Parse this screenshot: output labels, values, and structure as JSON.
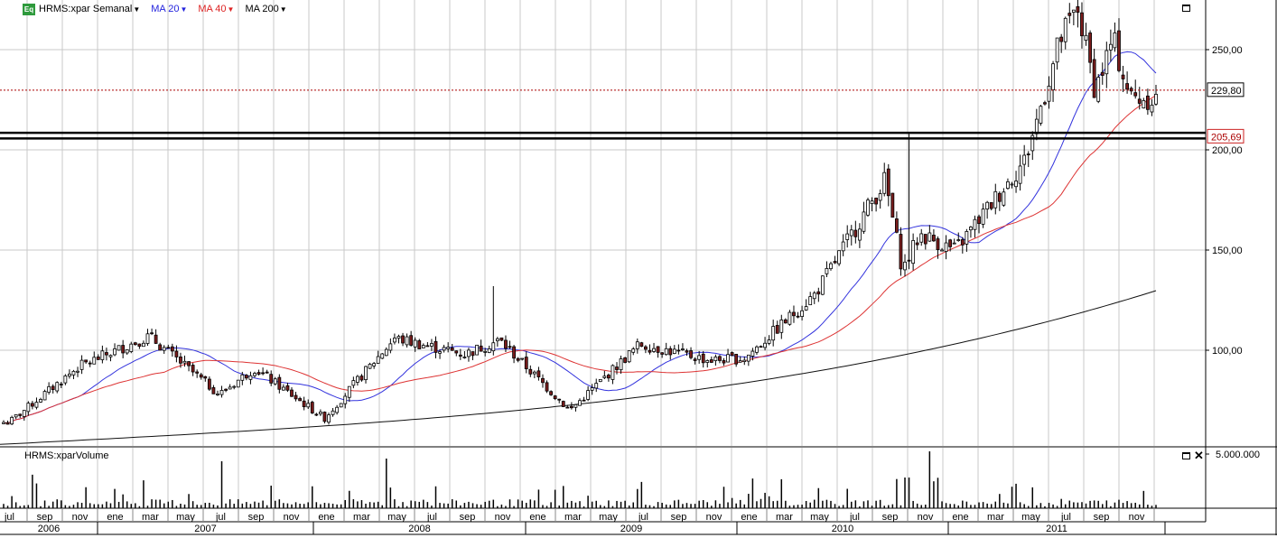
{
  "header": {
    "badge": "Eq",
    "symbol": "HRMS:xpar Semanal",
    "indicators": [
      {
        "label": "MA 20",
        "color": "#2222dd"
      },
      {
        "label": "MA 40",
        "color": "#dd2222"
      },
      {
        "label": "MA 200",
        "color": "#000000"
      }
    ]
  },
  "volume_panel": {
    "title": "HRMS:xparVolume",
    "tick_label": "5.000.000"
  },
  "price_markers": {
    "last": "229,80",
    "support": "205,69"
  },
  "icons": {
    "maximize": "maximize-icon",
    "close": "close-icon"
  },
  "colors": {
    "up": "#ffffff",
    "down": "#7a1c1c",
    "wick": "#000000",
    "ma20": "#3333dd",
    "ma40": "#dd3333",
    "ma200": "#111111",
    "grid": "#c8c8c8"
  },
  "chart_data": {
    "type": "candlestick",
    "y_axis": {
      "ticks": [
        100,
        150,
        200,
        250
      ],
      "tick_labels": [
        "100,00",
        "150,00",
        "200,00",
        "250,00"
      ],
      "range": [
        55,
        275
      ]
    },
    "reference_lines": [
      {
        "value": 229.8,
        "style": "dotted",
        "color": "#aa0000",
        "label": "229,80"
      },
      {
        "value": 208.5,
        "style": "solid-thick",
        "color": "#000000"
      },
      {
        "value": 205.69,
        "style": "solid-thick",
        "color": "#000000",
        "label": "205,69"
      }
    ],
    "x_axis": {
      "months": [
        "jul",
        "sep",
        "nov",
        "ene",
        "mar",
        "may",
        "jul",
        "sep",
        "nov",
        "ene",
        "mar",
        "may",
        "jul",
        "sep",
        "nov",
        "ene",
        "mar",
        "may",
        "jul",
        "sep",
        "nov",
        "ene",
        "mar",
        "may",
        "jul",
        "sep",
        "nov",
        "ene",
        "mar",
        "may",
        "jul",
        "sep",
        "nov"
      ],
      "years": [
        "2006",
        "2007",
        "2008",
        "2009",
        "2010",
        "2011"
      ]
    },
    "series": [
      {
        "name": "MA 20",
        "kind": "moving_average",
        "period": 20
      },
      {
        "name": "MA 40",
        "kind": "moving_average",
        "period": 40
      },
      {
        "name": "MA 200",
        "kind": "moving_average",
        "period": 200
      }
    ],
    "key_points": [
      {
        "date": "2006-07",
        "close": 64
      },
      {
        "date": "2006-11",
        "close": 92
      },
      {
        "date": "2007-03",
        "close": 107
      },
      {
        "date": "2007-07",
        "close": 78
      },
      {
        "date": "2007-09",
        "close": 91
      },
      {
        "date": "2008-01",
        "close": 66
      },
      {
        "date": "2008-05",
        "close": 106
      },
      {
        "date": "2008-09",
        "close": 98
      },
      {
        "date": "2008-11",
        "close": 105
      },
      {
        "date": "2009-03",
        "close": 70
      },
      {
        "date": "2009-07",
        "close": 103
      },
      {
        "date": "2009-11",
        "close": 95
      },
      {
        "date": "2010-01",
        "close": 96
      },
      {
        "date": "2010-05",
        "close": 128
      },
      {
        "date": "2010-09",
        "close": 185
      },
      {
        "date": "2010-10",
        "close": 140
      },
      {
        "date": "2010-11",
        "close": 158
      },
      {
        "date": "2011-01",
        "close": 150
      },
      {
        "date": "2011-05",
        "close": 195
      },
      {
        "date": "2011-07",
        "close": 255
      },
      {
        "date": "2011-08",
        "close": 270
      },
      {
        "date": "2011-09",
        "close": 230
      },
      {
        "date": "2011-10",
        "close": 255
      },
      {
        "date": "2011-11",
        "close": 226
      }
    ]
  }
}
